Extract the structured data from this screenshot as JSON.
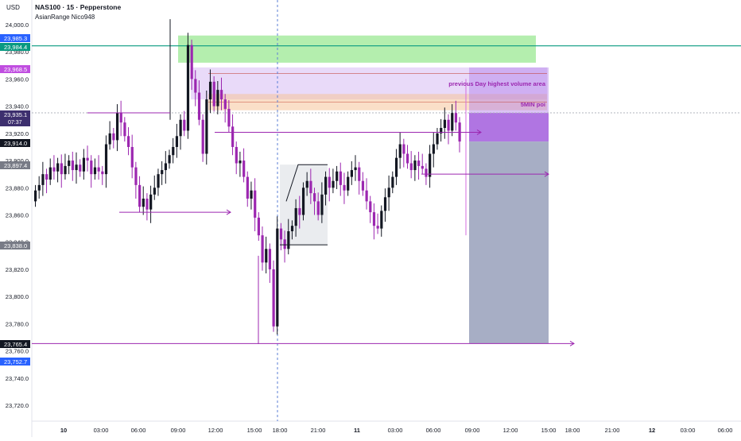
{
  "header": {
    "currency": "USD",
    "title": "NAS100 · 15 · Pepperstone",
    "indicator": "AsianRange Nico948"
  },
  "annotations": {
    "volume_area": "previous Day highest volume area",
    "poi": "5MIN poi"
  },
  "price_tags": {
    "green_line": "23,985.3",
    "green_line_2": "23,984.4",
    "purple_high": "23,968.5",
    "current": "23,935.1",
    "countdown": "07:37",
    "black_tag": "23,914.0",
    "grey_tag": "23,897.4",
    "low_tag": "23,838.0",
    "stop_tag": "23,765.4",
    "blue_tag": "23,752.7"
  },
  "colors": {
    "up_candle": "#131722",
    "down_candle": "#9c27b0",
    "green_zone": "#76e06c",
    "green_line": "#089981",
    "purple_zone": "#b07be8",
    "target_zone": "#8a93b2",
    "poi_zone": "#f5c49a"
  },
  "chart_data": {
    "type": "candlestick",
    "symbol": "NAS100",
    "interval": "15",
    "ylim": [
      23700,
      24010
    ],
    "y_ticks": [
      "24,000.0",
      "23,980.0",
      "23,960.0",
      "23,940.0",
      "23,920.0",
      "23,900.0",
      "23,880.0",
      "23,860.0",
      "23,840.0",
      "23,820.0",
      "23,800.0",
      "23,780.0",
      "23,760.0",
      "23,740.0",
      "23,720.0"
    ],
    "x_ticks": [
      "10",
      "03:00",
      "06:00",
      "09:00",
      "12:00",
      "15:00",
      "18:00",
      "21:00",
      "11",
      "03:00",
      "06:00",
      "09:00",
      "12:00",
      "15:00",
      "18:00",
      "21:00",
      "12",
      "03:00",
      "06:00"
    ],
    "grid": false,
    "closes": [
      23878,
      23882,
      23890,
      23886,
      23895,
      23892,
      23898,
      23890,
      23896,
      23900,
      23893,
      23897,
      23892,
      23902,
      23900,
      23890,
      23895,
      23892,
      23890,
      23912,
      23920,
      23915,
      23935,
      23928,
      23918,
      23910,
      23895,
      23882,
      23866,
      23872,
      23864,
      23875,
      23880,
      23890,
      23893,
      23898,
      23904,
      23910,
      23918,
      23930,
      23922,
      23985,
      23960,
      23950,
      23930,
      23905,
      23945,
      23958,
      23940,
      23952,
      23945,
      23938,
      23925,
      23910,
      23898,
      23900,
      23888,
      23872,
      23878,
      23858,
      23845,
      23825,
      23835,
      23820,
      23778,
      23850,
      23842,
      23835,
      23848,
      23852,
      23865,
      23860,
      23880,
      23885,
      23876,
      23870,
      23860,
      23875,
      23888,
      23880,
      23885,
      23892,
      23882,
      23878,
      23888,
      23893,
      23895,
      23885,
      23878,
      23870,
      23862,
      23852,
      23850,
      23863,
      23873,
      23880,
      23888,
      23902,
      23912,
      23905,
      23898,
      23893,
      23900,
      23896,
      23894,
      23888,
      23905,
      23912,
      23920,
      23924,
      23930,
      23922,
      23935,
      23928,
      23914
    ],
    "levels": [
      {
        "type": "hline",
        "y": 23984.4
      },
      {
        "type": "ray",
        "y": 23935.1
      },
      {
        "type": "ray",
        "y": 23920.8
      },
      {
        "type": "ray",
        "y": 23862.0
      },
      {
        "type": "ray",
        "y": 23890.0
      },
      {
        "type": "ray",
        "y": 23765.4
      }
    ],
    "zones": [
      {
        "type": "green_zone",
        "y1": 23992,
        "y2": 23972
      },
      {
        "type": "volume_area",
        "y1": 23968.5,
        "y2": 23945
      },
      {
        "type": "poi",
        "y1": 23949,
        "y2": 23937
      },
      {
        "type": "short_position",
        "entry": 23935.1,
        "stop": 23968.5,
        "target": 23765.4
      }
    ]
  }
}
